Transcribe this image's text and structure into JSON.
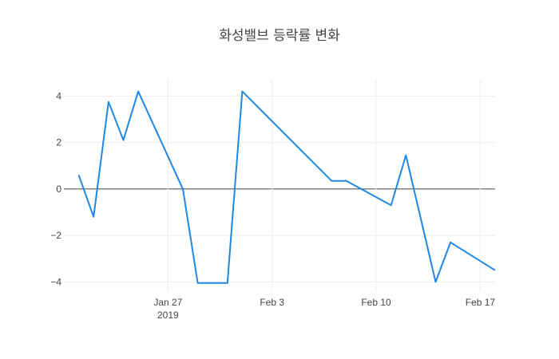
{
  "chart_data": {
    "type": "line",
    "title": "화성밸브 등락률 변화",
    "xlabel": "",
    "ylabel": "",
    "line_color": "#1f88e5",
    "grid": true,
    "ylim": [
      -4.4,
      4.7
    ],
    "xlim": [
      "2019-01-20",
      "2019-02-18"
    ],
    "y_ticks": [
      4,
      2,
      0,
      -2,
      -4
    ],
    "y_tick_labels": [
      "4",
      "2",
      "0",
      "−2",
      "−4"
    ],
    "x_ticks": [
      {
        "date": "2019-01-27",
        "label": "Jan 27",
        "sublabel": "2019"
      },
      {
        "date": "2019-02-03",
        "label": "Feb 3",
        "sublabel": ""
      },
      {
        "date": "2019-02-10",
        "label": "Feb 10",
        "sublabel": ""
      },
      {
        "date": "2019-02-17",
        "label": "Feb 17",
        "sublabel": ""
      }
    ],
    "series": [
      {
        "x": [
          "2019-01-21",
          "2019-01-22",
          "2019-01-23",
          "2019-01-24",
          "2019-01-25",
          "2019-01-28",
          "2019-01-29",
          "2019-01-30",
          "2019-01-31",
          "2019-02-01",
          "2019-02-07",
          "2019-02-08",
          "2019-02-11",
          "2019-02-12",
          "2019-02-14",
          "2019-02-15",
          "2019-02-18"
        ],
        "y": [
          0.6,
          -1.2,
          3.75,
          2.1,
          4.2,
          0.0,
          -4.05,
          -4.05,
          -4.05,
          4.2,
          0.35,
          0.35,
          -0.7,
          1.45,
          -4.0,
          -2.3,
          -3.5
        ]
      }
    ]
  }
}
